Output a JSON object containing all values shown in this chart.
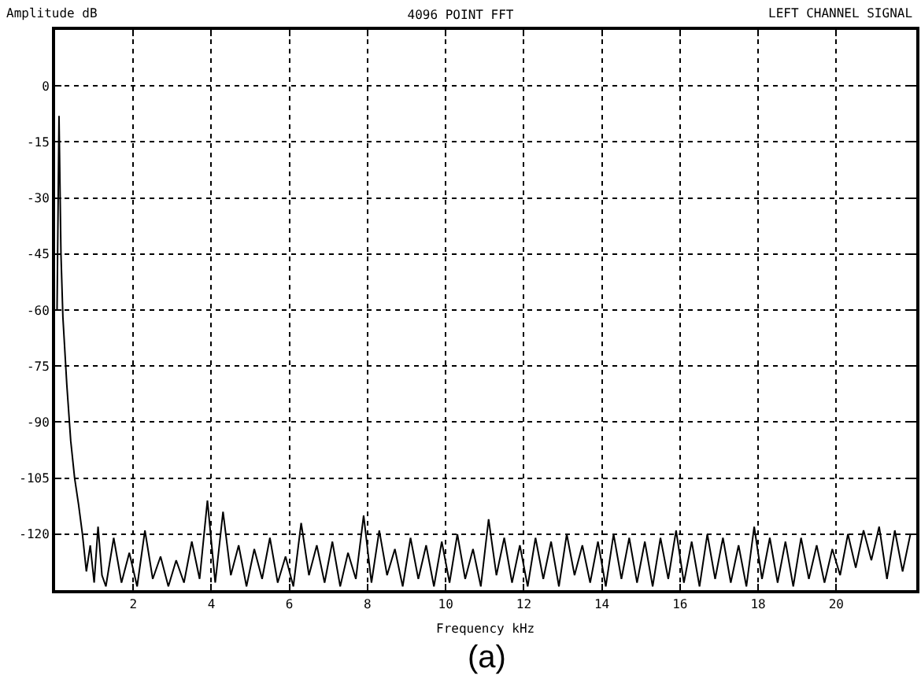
{
  "chart_data": {
    "type": "line",
    "title": "4096 POINT FFT",
    "subtitle": "LEFT CHANNEL SIGNAL",
    "ylabel": "Amplitude dB",
    "xlabel": "Frequency kHz",
    "annotations": [
      "(a)"
    ],
    "color": "#000000",
    "line_style": "solid",
    "grid": true,
    "xlim": [
      0,
      22.05
    ],
    "xticks": [
      2,
      4,
      6,
      8,
      10,
      12,
      14,
      16,
      18,
      20
    ],
    "ylim": [
      -135,
      15
    ],
    "yticks": [
      0,
      -15,
      -30,
      -45,
      -60,
      -75,
      -90,
      -105,
      -120
    ],
    "x": [
      0.05,
      0.1,
      0.15,
      0.2,
      0.3,
      0.4,
      0.5,
      0.6,
      0.7,
      0.8,
      0.9,
      1.0,
      1.1,
      1.2,
      1.3,
      1.5,
      1.7,
      1.9,
      2.1,
      2.3,
      2.5,
      2.7,
      2.9,
      3.1,
      3.3,
      3.5,
      3.7,
      3.9,
      4.1,
      4.3,
      4.5,
      4.7,
      4.9,
      5.1,
      5.3,
      5.5,
      5.7,
      5.9,
      6.1,
      6.3,
      6.5,
      6.7,
      6.9,
      7.1,
      7.3,
      7.5,
      7.7,
      7.9,
      8.1,
      8.3,
      8.5,
      8.7,
      8.9,
      9.1,
      9.3,
      9.5,
      9.7,
      9.9,
      10.1,
      10.3,
      10.5,
      10.7,
      10.9,
      11.1,
      11.3,
      11.5,
      11.7,
      11.9,
      12.1,
      12.3,
      12.5,
      12.7,
      12.9,
      13.1,
      13.3,
      13.5,
      13.7,
      13.9,
      14.1,
      14.3,
      14.5,
      14.7,
      14.9,
      15.1,
      15.3,
      15.5,
      15.7,
      15.9,
      16.1,
      16.3,
      16.5,
      16.7,
      16.9,
      17.1,
      17.3,
      17.5,
      17.7,
      17.9,
      18.1,
      18.3,
      18.5,
      18.7,
      18.9,
      19.1,
      19.3,
      19.5,
      19.7,
      19.9,
      20.1,
      20.3,
      20.5,
      20.7,
      20.9,
      21.1,
      21.3,
      21.5,
      21.7,
      21.9
    ],
    "values": [
      -60,
      -8,
      -45,
      -62,
      -80,
      -95,
      -105,
      -112,
      -120,
      -130,
      -123,
      -133,
      -118,
      -131,
      -134,
      -121,
      -133,
      -125,
      -134,
      -119,
      -132,
      -126,
      -134,
      -127,
      -133,
      -122,
      -132,
      -111,
      -133,
      -114,
      -131,
      -123,
      -134,
      -124,
      -132,
      -121,
      -133,
      -126,
      -134,
      -117,
      -131,
      -123,
      -133,
      -122,
      -134,
      -125,
      -132,
      -115,
      -133,
      -119,
      -131,
      -124,
      -134,
      -121,
      -132,
      -123,
      -134,
      -122,
      -133,
      -120,
      -132,
      -124,
      -134,
      -116,
      -131,
      -121,
      -133,
      -123,
      -134,
      -121,
      -132,
      -122,
      -134,
      -120,
      -131,
      -123,
      -133,
      -122,
      -134,
      -120,
      -132,
      -121,
      -133,
      -122,
      -134,
      -121,
      -132,
      -119,
      -133,
      -122,
      -134,
      -120,
      -132,
      -121,
      -133,
      -123,
      -134,
      -118,
      -132,
      -121,
      -133,
      -122,
      -134,
      -121,
      -132,
      -123,
      -133,
      -124,
      -131,
      -120,
      -129,
      -119,
      -127,
      -118,
      -132,
      -119,
      -130,
      -120
    ]
  }
}
